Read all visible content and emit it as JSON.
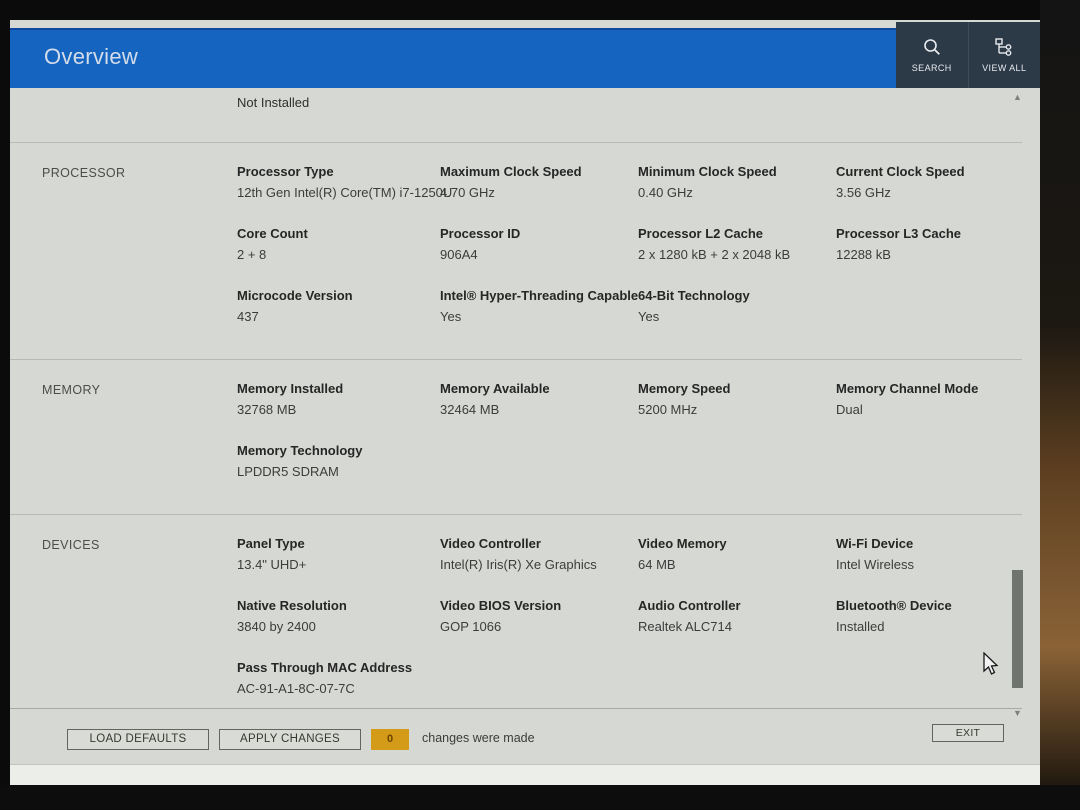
{
  "header": {
    "title": "Overview",
    "actions": [
      {
        "label": "SEARCH",
        "icon": "search-icon"
      },
      {
        "label": "VIEW ALL",
        "icon": "view-all-icon"
      }
    ]
  },
  "notice": "Not Installed",
  "sections": [
    {
      "name": "PROCESSOR",
      "rows": [
        [
          {
            "label": "Processor Type",
            "value": "12th Gen Intel(R) Core(TM) i7-1250U"
          },
          {
            "label": "Maximum Clock Speed",
            "value": "4.70 GHz"
          },
          {
            "label": "Minimum Clock Speed",
            "value": "0.40 GHz"
          },
          {
            "label": "Current Clock Speed",
            "value": "3.56 GHz"
          }
        ],
        [
          {
            "label": "Core Count",
            "value": "2 + 8"
          },
          {
            "label": "Processor ID",
            "value": "906A4"
          },
          {
            "label": "Processor L2 Cache",
            "value": "2 x 1280 kB + 2 x 2048 kB"
          },
          {
            "label": "Processor L3 Cache",
            "value": "12288 kB"
          }
        ],
        [
          {
            "label": "Microcode Version",
            "value": "437"
          },
          {
            "label": "Intel® Hyper-Threading Capable",
            "value": "Yes"
          },
          {
            "label": "64-Bit Technology",
            "value": "Yes"
          }
        ]
      ]
    },
    {
      "name": "MEMORY",
      "rows": [
        [
          {
            "label": "Memory Installed",
            "value": "32768 MB"
          },
          {
            "label": "Memory Available",
            "value": "32464 MB"
          },
          {
            "label": "Memory Speed",
            "value": "5200 MHz"
          },
          {
            "label": "Memory Channel Mode",
            "value": "Dual"
          }
        ],
        [
          {
            "label": "Memory Technology",
            "value": "LPDDR5 SDRAM"
          }
        ]
      ]
    },
    {
      "name": "DEVICES",
      "rows": [
        [
          {
            "label": "Panel Type",
            "value": "13.4\" UHD+"
          },
          {
            "label": "Video Controller",
            "value": "Intel(R) Iris(R) Xe Graphics"
          },
          {
            "label": "Video Memory",
            "value": "64 MB"
          },
          {
            "label": "Wi-Fi Device",
            "value": "Intel Wireless"
          }
        ],
        [
          {
            "label": "Native Resolution",
            "value": "3840 by 2400"
          },
          {
            "label": "Video BIOS Version",
            "value": "GOP 1066"
          },
          {
            "label": "Audio Controller",
            "value": "Realtek ALC714"
          },
          {
            "label": "Bluetooth® Device",
            "value": "Installed"
          }
        ],
        [
          {
            "label": "Pass Through MAC Address",
            "value": "AC-91-A1-8C-07-7C"
          }
        ]
      ]
    }
  ],
  "footer": {
    "load_defaults": "LOAD DEFAULTS",
    "apply_changes": "APPLY CHANGES",
    "changes_count": "0",
    "changes_text": "changes were made",
    "exit": "EXIT"
  },
  "colors": {
    "accent_blue": "#1565c0",
    "actions_panel": "#2c3947",
    "badge_amber": "#d39b18",
    "screen_bg": "#d6d9d3"
  }
}
